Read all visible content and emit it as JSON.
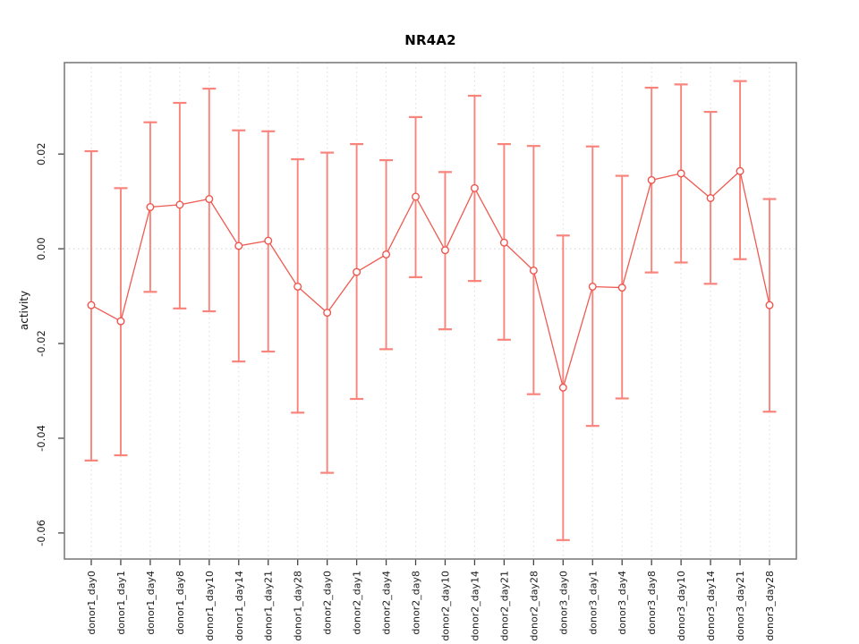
{
  "chart_data": {
    "type": "scatter",
    "title": "NR4A2",
    "xlabel": "",
    "ylabel": "activity",
    "legend": "none",
    "grid": "dotted vertical line per category; dotted horizontal line at y=0",
    "categories": [
      "donor1_day0",
      "donor1_day1",
      "donor1_day4",
      "donor1_day8",
      "donor1_day10",
      "donor1_day14",
      "donor1_day21",
      "donor1_day28",
      "donor2_day0",
      "donor2_day1",
      "donor2_day4",
      "donor2_day8",
      "donor2_day10",
      "donor2_day14",
      "donor2_day21",
      "donor2_day28",
      "donor3_day0",
      "donor3_day1",
      "donor3_day4",
      "donor3_day8",
      "donor3_day10",
      "donor3_day14",
      "donor3_day21",
      "donor3_day28"
    ],
    "series": [
      {
        "name": "activity mean with error bars",
        "values": [
          -0.0119,
          -0.0153,
          0.0088,
          0.0093,
          0.0105,
          0.0006,
          0.0017,
          -0.008,
          -0.0135,
          -0.0049,
          -0.0012,
          0.011,
          -0.0003,
          0.0128,
          0.0013,
          -0.0046,
          -0.0293,
          -0.008,
          -0.0082,
          0.0145,
          0.0159,
          0.0107,
          0.0164,
          -0.0119
        ],
        "upper": [
          0.0206,
          0.0128,
          0.0267,
          0.0308,
          0.0338,
          0.025,
          0.0248,
          0.0189,
          0.0203,
          0.0221,
          0.0187,
          0.0278,
          0.0162,
          0.0323,
          0.0221,
          0.0217,
          0.0028,
          0.0216,
          0.0154,
          0.034,
          0.0347,
          0.0289,
          0.0354,
          0.0105
        ],
        "lower": [
          -0.0447,
          -0.0436,
          -0.0091,
          -0.0126,
          -0.0132,
          -0.0238,
          -0.0217,
          -0.0346,
          -0.0473,
          -0.0317,
          -0.0212,
          -0.006,
          -0.017,
          -0.0068,
          -0.0192,
          -0.0307,
          -0.0615,
          -0.0374,
          -0.0316,
          -0.005,
          -0.0029,
          -0.0074,
          -0.0022,
          -0.0344
        ]
      }
    ],
    "ylim": [
      -0.0655,
      0.0393
    ],
    "yticks": [
      0.02,
      0.0,
      -0.02,
      -0.04,
      -0.06
    ],
    "ytick_labels": [
      "0.02",
      "0.00",
      "-0.02",
      "-0.04",
      "-0.06"
    ],
    "colors": {
      "point": "#ee564e",
      "errorbar": "#f8847c",
      "connector": "#ef5a52",
      "gridline": "#e2e2e2",
      "zero_line": "#dadada",
      "box": "#7d7d7d",
      "tick": "#444444",
      "text": "#1a1a1a"
    }
  }
}
